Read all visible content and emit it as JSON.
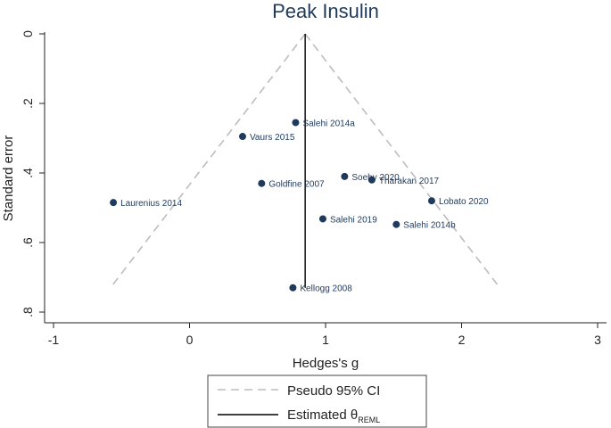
{
  "chart_data": {
    "type": "scatter",
    "title": "Peak Insulin",
    "xlabel": "Hedges's g",
    "ylabel": "Standard error",
    "xlim": [
      -1,
      3
    ],
    "ylim": [
      0,
      0.8
    ],
    "y_inverted": true,
    "xticks": [
      -1,
      0,
      1,
      2,
      3
    ],
    "xtick_labels": [
      "-1",
      "0",
      "1",
      "2",
      "3"
    ],
    "yticks": [
      0,
      0.2,
      0.4,
      0.6,
      0.8
    ],
    "ytick_labels": [
      "0",
      ".2",
      ".4",
      ".6",
      ".8"
    ],
    "theta_reml": 0.85,
    "ci_se_max": 0.73,
    "points": [
      {
        "label": "Salehi 2014a",
        "x": 0.78,
        "y": 0.255
      },
      {
        "label": "Vaurs 2015",
        "x": 0.39,
        "y": 0.295
      },
      {
        "label": "Soehy 2020",
        "x": 1.14,
        "y": 0.41
      },
      {
        "label": "Tharakan 2017",
        "x": 1.34,
        "y": 0.42
      },
      {
        "label": "Goldfine 2007",
        "x": 0.53,
        "y": 0.43
      },
      {
        "label": "Laurenius 2014",
        "x": -0.56,
        "y": 0.485
      },
      {
        "label": "Lobato 2020",
        "x": 1.78,
        "y": 0.48
      },
      {
        "label": "Salehi 2019",
        "x": 0.98,
        "y": 0.532
      },
      {
        "label": "Salehi 2014b",
        "x": 1.52,
        "y": 0.548
      },
      {
        "label": "Kellogg 2008",
        "x": 0.76,
        "y": 0.73
      }
    ],
    "legend": {
      "placement": "bottom",
      "items": [
        {
          "label": "Pseudo 95% CI",
          "style": "dashed"
        },
        {
          "label": "Estimated θ",
          "subscript": "REML",
          "style": "solid"
        }
      ]
    },
    "colors": {
      "points": "#1f3a5c",
      "ci": "#bdbdbd",
      "theta": "#000000"
    }
  }
}
